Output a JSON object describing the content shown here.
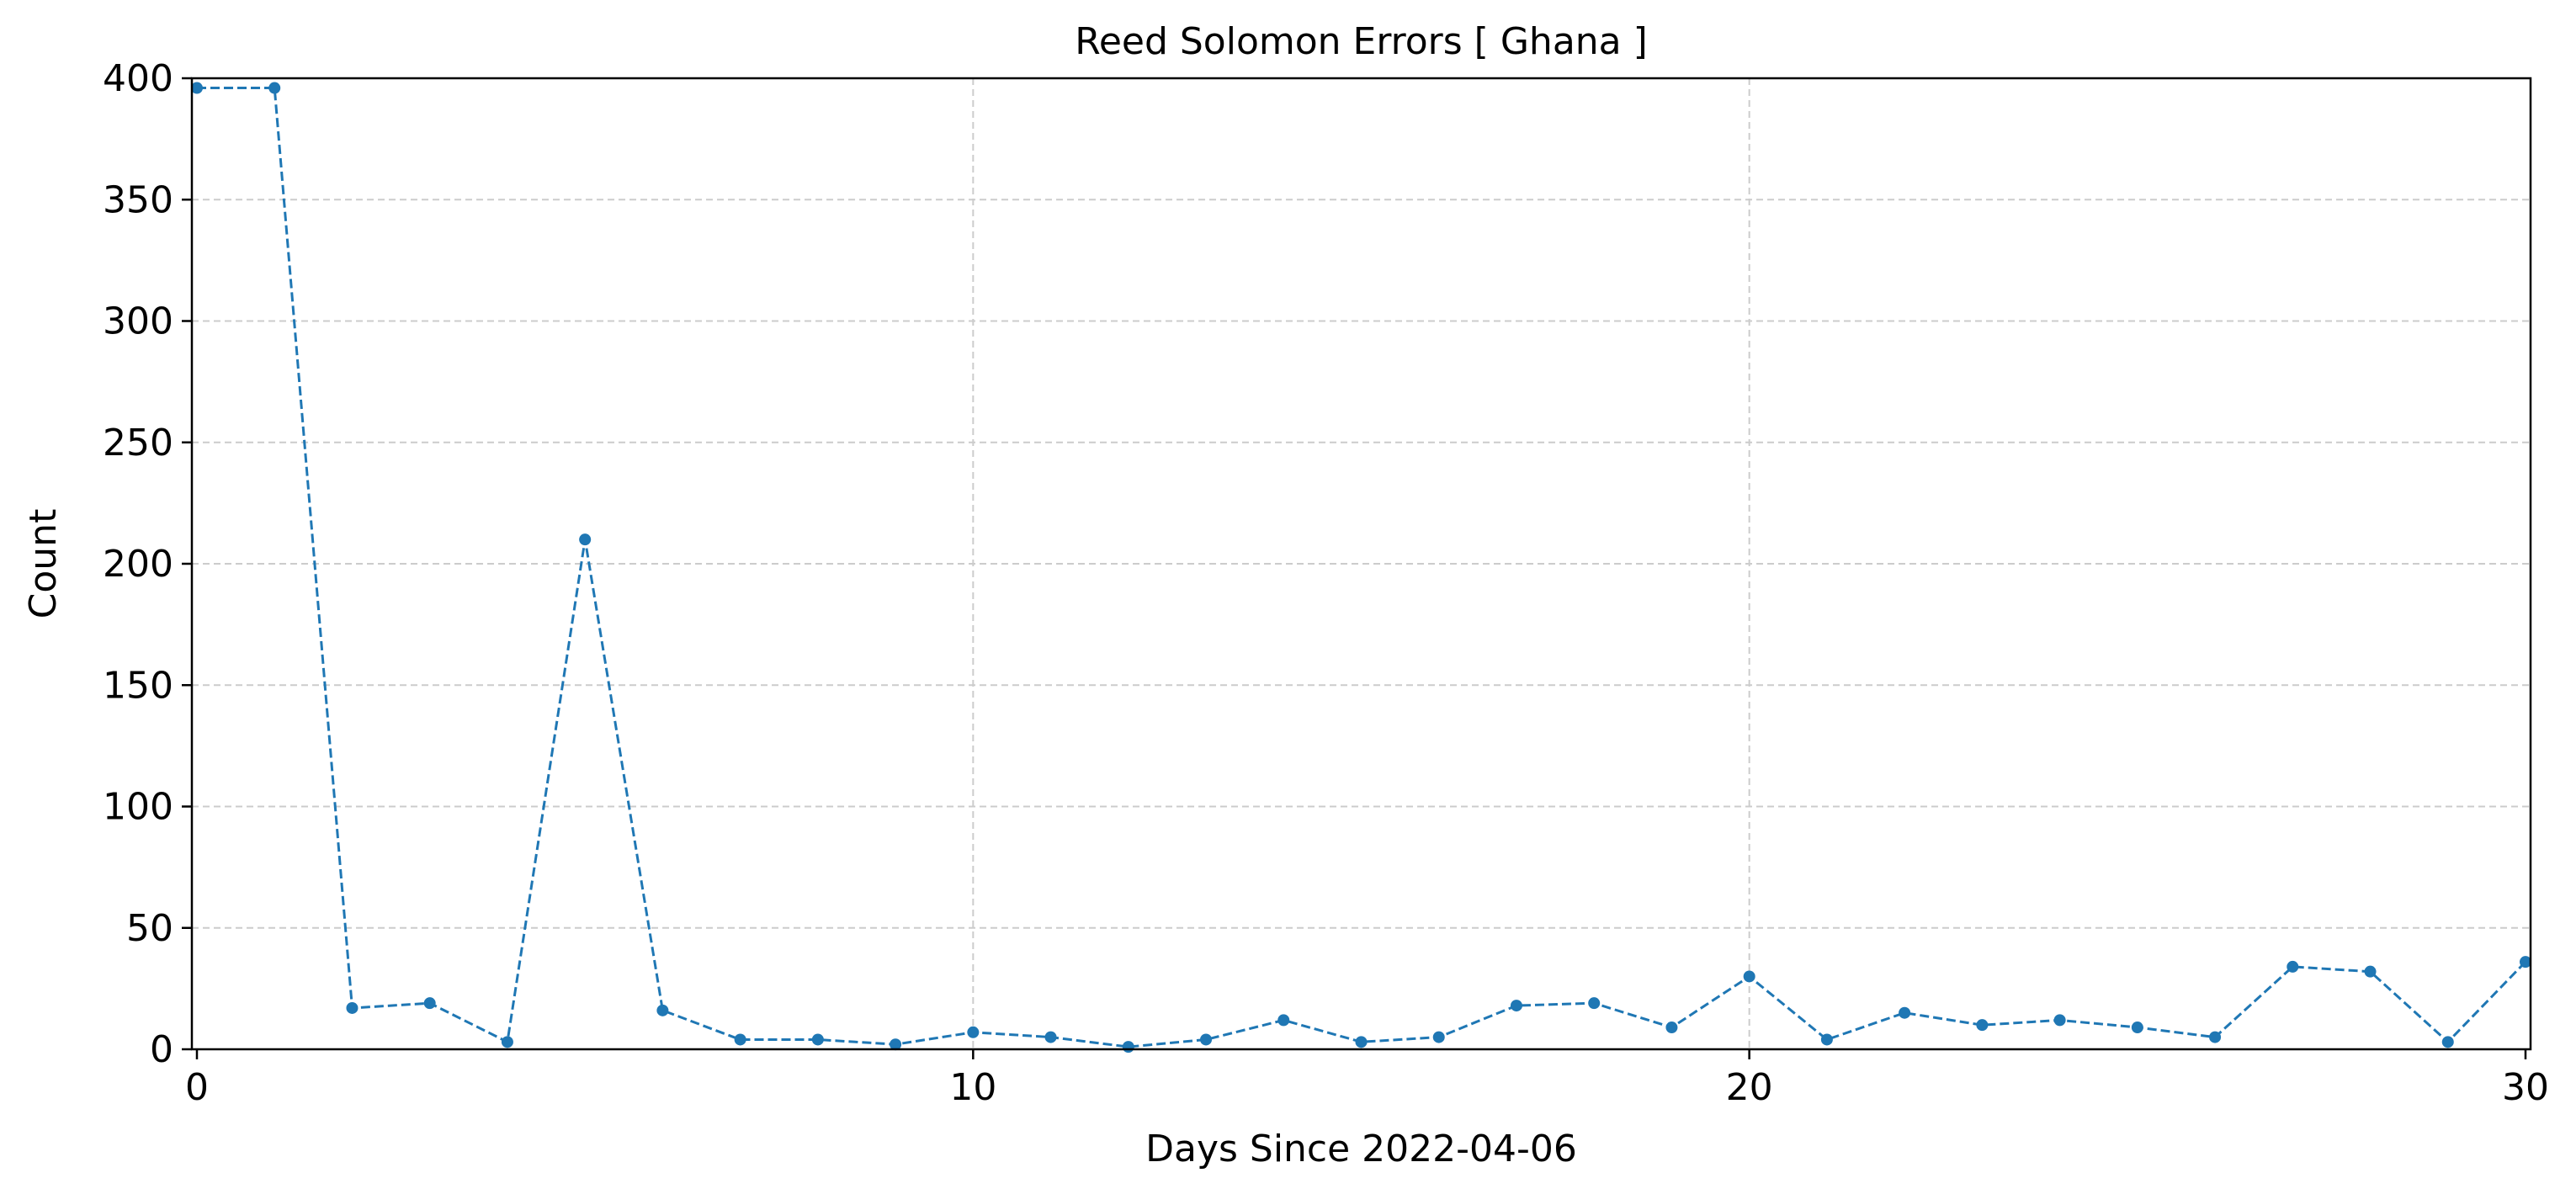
{
  "chart_data": {
    "type": "line",
    "title": "Reed Solomon Errors [ Ghana ]",
    "xlabel": "Days Since 2022-04-06",
    "ylabel": "Count",
    "xlim": [
      0,
      30
    ],
    "ylim": [
      0,
      400
    ],
    "x_ticks": [
      0,
      10,
      20,
      30
    ],
    "y_ticks": [
      0,
      50,
      100,
      150,
      200,
      250,
      300,
      350,
      400
    ],
    "grid": true,
    "line_style": "dashed",
    "marker": "circle",
    "color": "#1f77b4",
    "series": [
      {
        "x": [
          0,
          1,
          2,
          3,
          4,
          5,
          6,
          7,
          8,
          9,
          10,
          11,
          12,
          13,
          14,
          15,
          16,
          17,
          18,
          19,
          20,
          21,
          22,
          23,
          24,
          25,
          26,
          27,
          28,
          29,
          30
        ],
        "values": [
          396,
          396,
          17,
          19,
          3,
          210,
          16,
          4,
          4,
          2,
          7,
          5,
          1,
          4,
          12,
          3,
          5,
          18,
          19,
          9,
          30,
          4,
          15,
          10,
          12,
          9,
          5,
          34,
          32,
          3,
          36
        ]
      }
    ]
  }
}
